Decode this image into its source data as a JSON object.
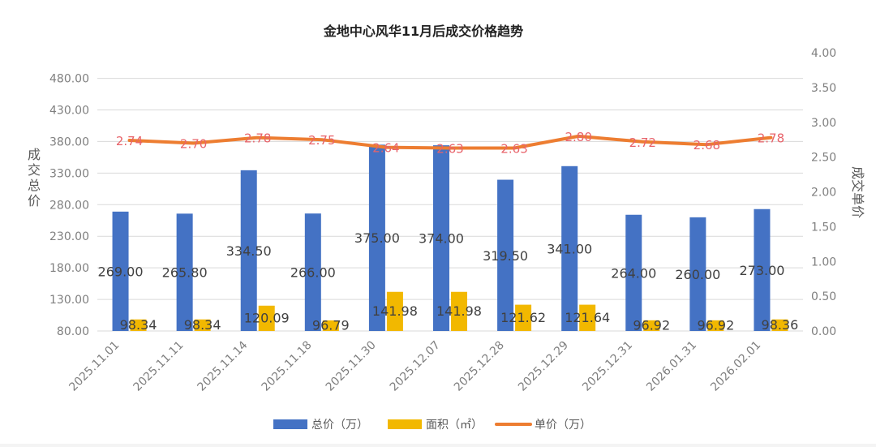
{
  "chart_data": {
    "type": "bar",
    "title": "金地中心风华11月后成交价格趋势",
    "categories": [
      "2025.11.01",
      "2025.11.11",
      "2025.11.14",
      "2025.11.18",
      "2025.11.30",
      "2025.12.07",
      "2025.12.28",
      "2025.12.29",
      "2025.12.31",
      "2026.01.31",
      "2026.02.01"
    ],
    "ylabel": "成交总价",
    "y2label": "成交单价",
    "ylim": [
      80,
      500
    ],
    "y2lim": [
      0,
      4.0
    ],
    "yticks": [
      "80.00",
      "130.00",
      "180.00",
      "230.00",
      "280.00",
      "330.00",
      "380.00",
      "430.00",
      "480.00"
    ],
    "y2ticks": [
      "0.00",
      "0.50",
      "1.00",
      "1.50",
      "2.00",
      "2.50",
      "3.00",
      "3.50",
      "4.00"
    ],
    "grid": true,
    "legend_position": "bottom",
    "series": [
      {
        "name": "总价（万）",
        "type": "bar",
        "axis": "left",
        "color": "#4472c4",
        "values": [
          269.0,
          265.8,
          334.5,
          266.0,
          375.0,
          374.0,
          319.5,
          341.0,
          264.0,
          260.0,
          273.0
        ],
        "labels": [
          "269.00",
          "265.80",
          "334.50",
          "266.00",
          "375.00",
          "374.00",
          "319.50",
          "341.00",
          "264.00",
          "260.00",
          "273.00"
        ]
      },
      {
        "name": "面积（㎡）",
        "type": "bar",
        "axis": "left",
        "color": "#f2b800",
        "values": [
          98.34,
          98.34,
          120.09,
          96.79,
          141.98,
          141.98,
          121.62,
          121.64,
          96.92,
          96.92,
          98.36
        ],
        "labels": [
          "98.34",
          "98.34",
          "120.09",
          "96.79",
          "141.98",
          "141.98",
          "121.62",
          "121.64",
          "96.92",
          "96.92",
          "98.36"
        ]
      },
      {
        "name": "单价（万）",
        "type": "line",
        "axis": "right",
        "color": "#ed7d31",
        "label_color": "#e8636a",
        "values": [
          2.74,
          2.7,
          2.78,
          2.75,
          2.64,
          2.63,
          2.63,
          2.8,
          2.72,
          2.68,
          2.78
        ],
        "labels": [
          "2.74",
          "2.70",
          "2.78",
          "2.75",
          "2.64",
          "2.63",
          "2.63",
          "2.80",
          "2.72",
          "2.68",
          "2.78"
        ]
      }
    ]
  }
}
